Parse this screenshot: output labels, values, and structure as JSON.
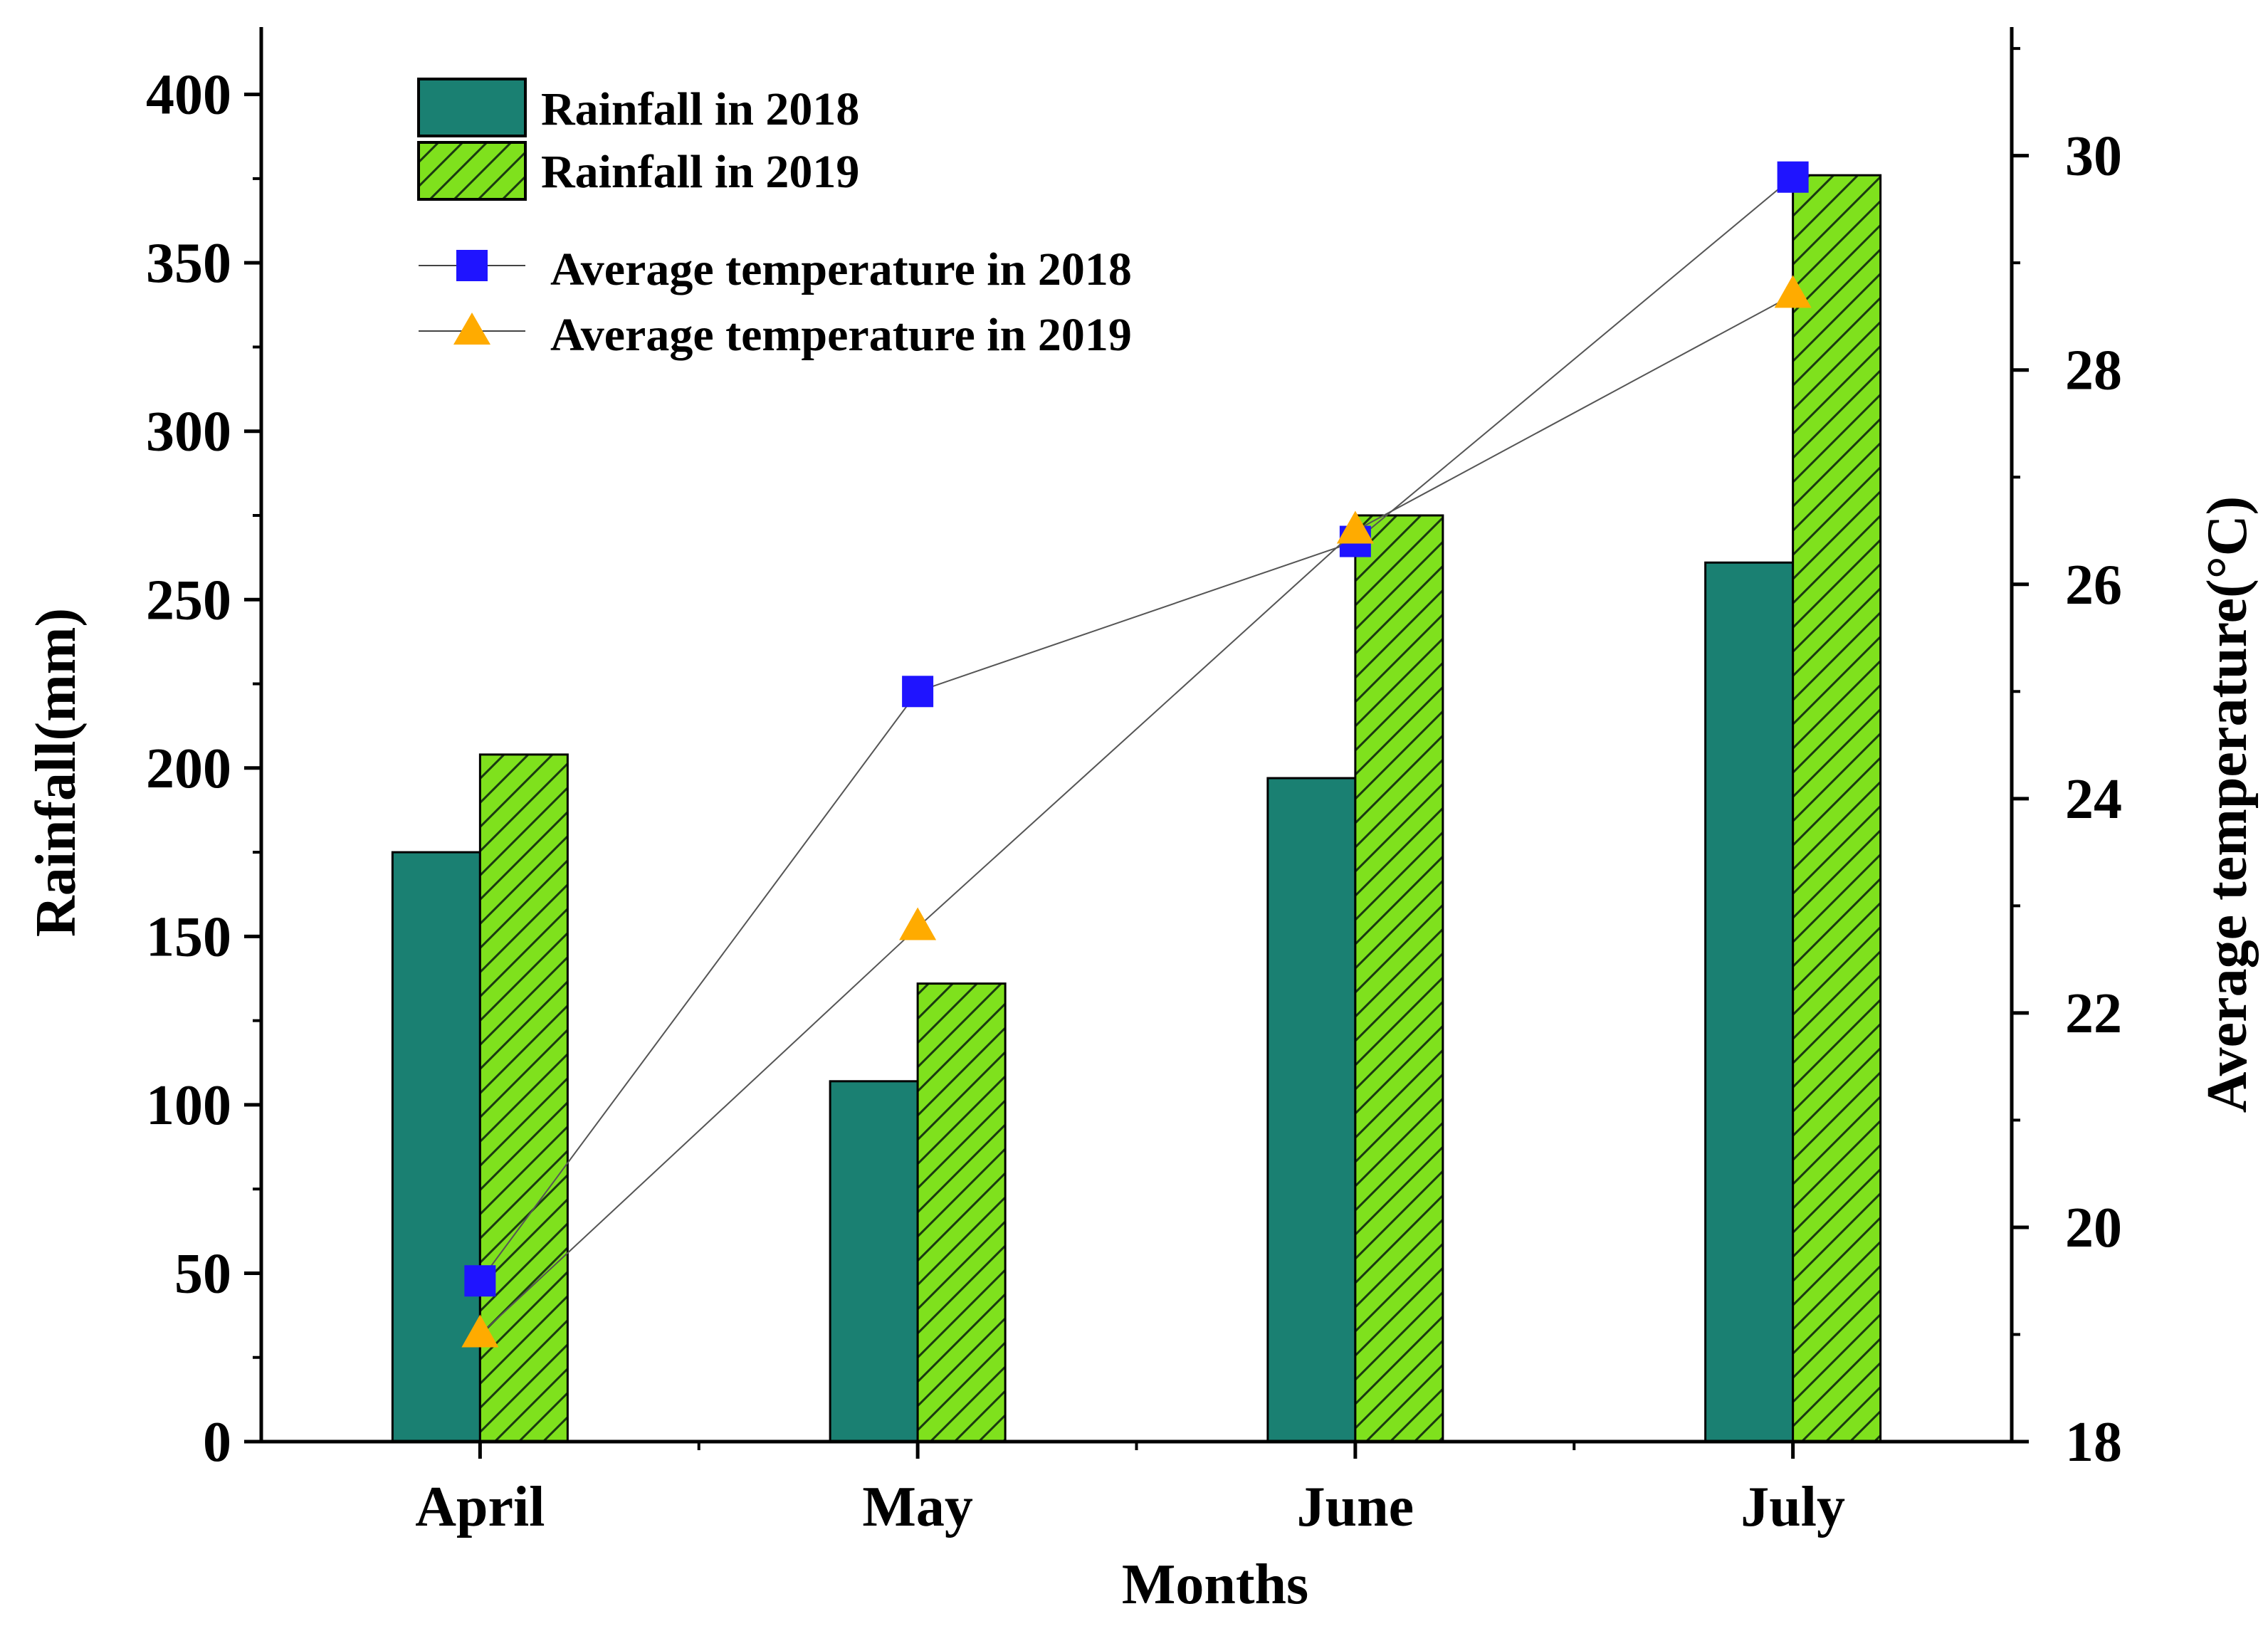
{
  "chart_data": {
    "type": "bar",
    "categories": [
      "April",
      "May",
      "June",
      "July"
    ],
    "xlabel": "Months",
    "ylabel": "Rainfall(mm)",
    "y2label": "Average temperature(°C)",
    "ylim": [
      0,
      420
    ],
    "yticks": [
      0,
      50,
      100,
      150,
      200,
      250,
      300,
      350,
      400
    ],
    "y2lim": [
      18,
      31.2
    ],
    "y2ticks": [
      18,
      20,
      22,
      24,
      26,
      28,
      30
    ],
    "series": [
      {
        "name": "Rainfall in 2018",
        "kind": "bar",
        "axis": "left",
        "color": "#1a8072",
        "hatch": false,
        "values": [
          175,
          107,
          197,
          261
        ]
      },
      {
        "name": "Rainfall in 2019",
        "kind": "bar",
        "axis": "left",
        "color": "#7fe11d",
        "hatch": true,
        "values": [
          204,
          136,
          275,
          376
        ]
      },
      {
        "name": "Average temperature in 2018",
        "kind": "line",
        "axis": "right",
        "color": "#1f14ff",
        "marker": "square",
        "values": [
          19.5,
          25.0,
          26.4,
          29.8
        ]
      },
      {
        "name": "Average temperature in 2019",
        "kind": "line",
        "axis": "right",
        "color": "#ffab00",
        "marker": "triangle",
        "values": [
          19.0,
          22.8,
          26.5,
          28.7
        ]
      }
    ]
  }
}
